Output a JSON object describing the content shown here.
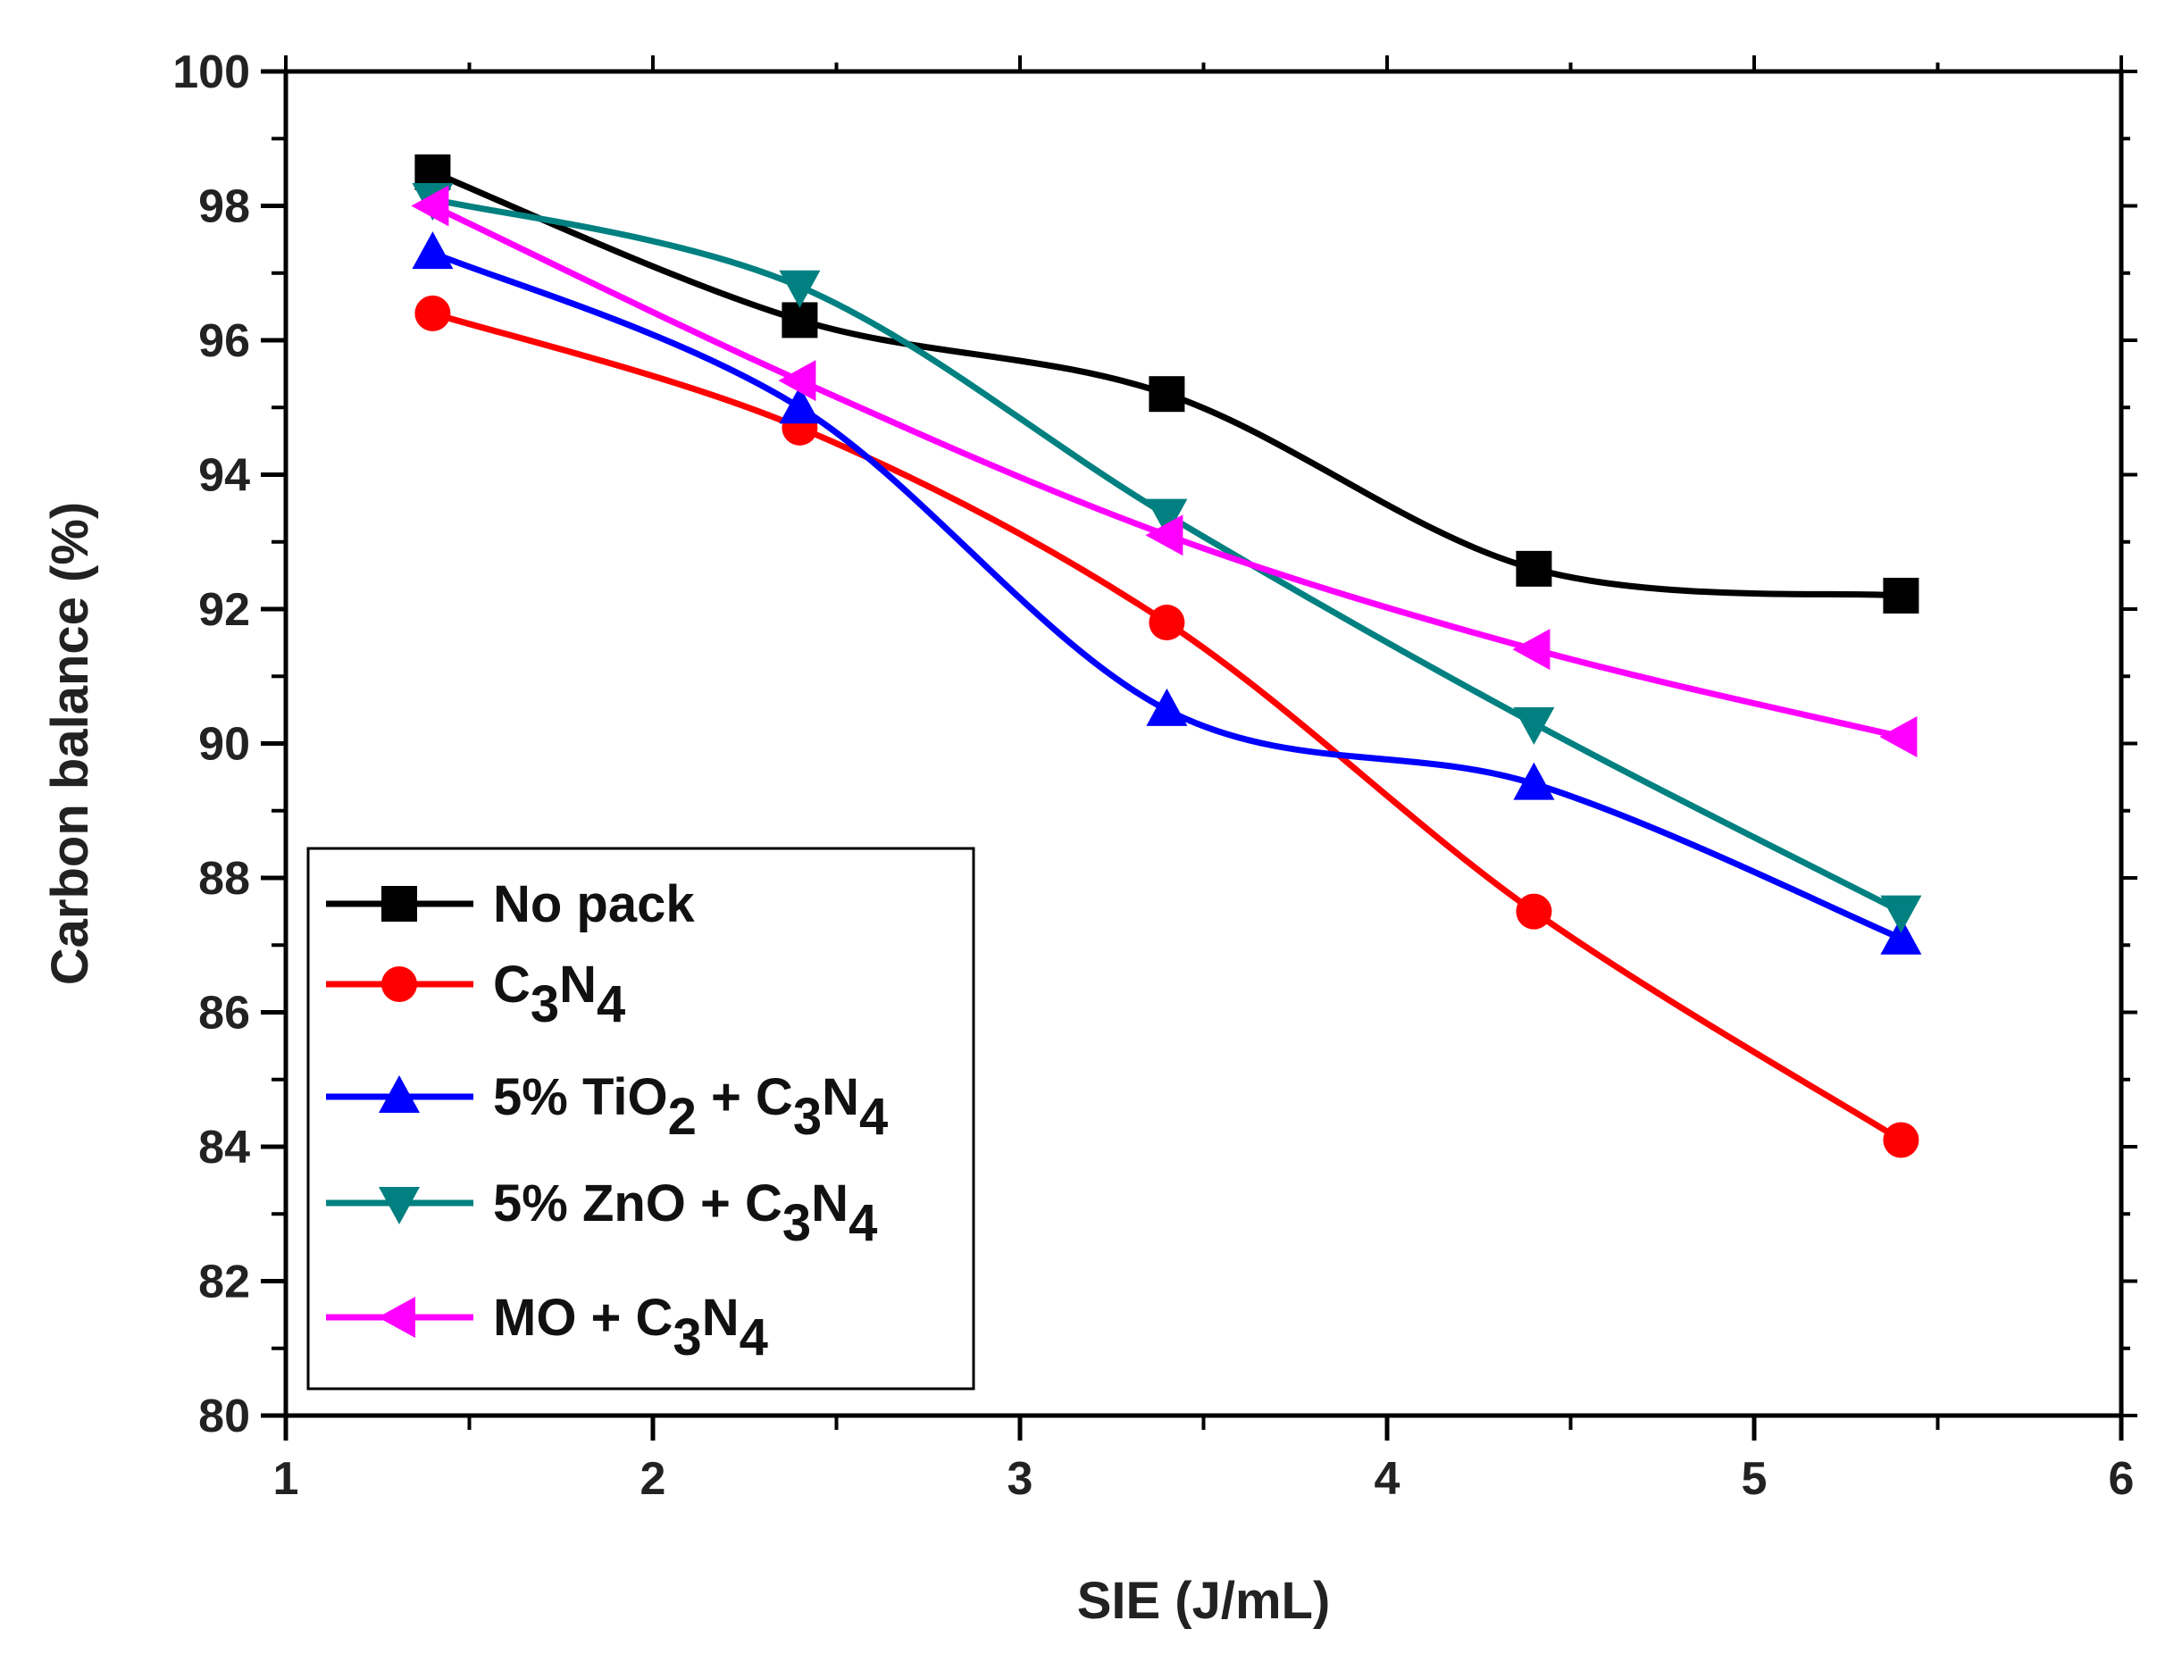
{
  "chart_data": {
    "type": "line",
    "title": "",
    "xlabel": "SIE (J/mL)",
    "ylabel": "Carbon balance (%)",
    "xlim": [
      1,
      6
    ],
    "ylim": [
      80,
      100
    ],
    "xticks": [
      "1",
      "2",
      "3",
      "4",
      "5",
      "6"
    ],
    "yticks": [
      "80",
      "82",
      "84",
      "86",
      "88",
      "90",
      "92",
      "94",
      "96",
      "98",
      "100"
    ],
    "x": [
      1.4,
      2.4,
      3.4,
      4.4,
      5.4
    ],
    "legend_position": "bottom-left",
    "series": [
      {
        "name": "No pack",
        "legend": [
          {
            "t": "No pack",
            "s": ""
          }
        ],
        "values": [
          98.5,
          96.3,
          95.2,
          92.6,
          92.2
        ],
        "color": "#000000",
        "marker": "square"
      },
      {
        "name": "C3N4",
        "legend": [
          {
            "t": "C",
            "s": ""
          },
          {
            "t": "3",
            "s": "sub"
          },
          {
            "t": "N",
            "s": ""
          },
          {
            "t": "4",
            "s": "sub"
          }
        ],
        "values": [
          96.4,
          94.7,
          91.8,
          87.5,
          84.1
        ],
        "color": "#ff0000",
        "marker": "circle"
      },
      {
        "name": "5% TiO2 + C3N4",
        "legend": [
          {
            "t": "5% TiO",
            "s": ""
          },
          {
            "t": "2",
            "s": "sub"
          },
          {
            "t": " + C",
            "s": ""
          },
          {
            "t": "3",
            "s": "sub"
          },
          {
            "t": "N",
            "s": ""
          },
          {
            "t": "4",
            "s": "sub"
          }
        ],
        "values": [
          97.3,
          95.0,
          90.5,
          89.4,
          87.1
        ],
        "color": "#0000ff",
        "marker": "triangle-up"
      },
      {
        "name": "5% ZnO + C3N4",
        "legend": [
          {
            "t": "5% ZnO + C",
            "s": ""
          },
          {
            "t": "3",
            "s": "sub"
          },
          {
            "t": "N",
            "s": ""
          },
          {
            "t": "4",
            "s": "sub"
          }
        ],
        "values": [
          98.1,
          96.8,
          93.4,
          90.3,
          87.5
        ],
        "color": "#008080",
        "marker": "triangle-down"
      },
      {
        "name": "MO + C3N4",
        "legend": [
          {
            "t": "MO + C",
            "s": ""
          },
          {
            "t": "3",
            "s": "sub"
          },
          {
            "t": "N",
            "s": ""
          },
          {
            "t": "4",
            "s": "sub"
          }
        ],
        "values": [
          98.0,
          95.4,
          93.1,
          91.4,
          90.1
        ],
        "color": "#ff00ff",
        "marker": "triangle-left"
      }
    ]
  }
}
